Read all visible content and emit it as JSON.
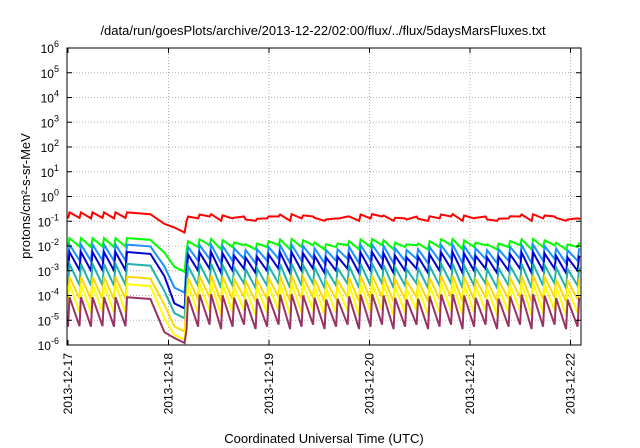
{
  "chart_data": {
    "type": "line",
    "title": "/data/run/goesPlots/archive/2013-12-22/02:00/flux/../flux/5daysMarsFluxes.txt",
    "xlabel": "Coordinated Universal Time (UTC)",
    "ylabel": "protons/cm²-s-sr-MeV",
    "yscale": "log",
    "ylim": [
      1e-06,
      1000000.0
    ],
    "xlim": [
      "2013-12-17",
      "2013-12-22T02:00"
    ],
    "grid": true,
    "x_ticks": [
      "2013-12-17",
      "2013-12-18",
      "2013-12-19",
      "2013-12-20",
      "2013-12-21",
      "2013-12-22"
    ],
    "y_ticks": [
      {
        "base": "10",
        "exp": "-6"
      },
      {
        "base": "10",
        "exp": "-5"
      },
      {
        "base": "10",
        "exp": "-4"
      },
      {
        "base": "10",
        "exp": "-3"
      },
      {
        "base": "10",
        "exp": "-2"
      },
      {
        "base": "10",
        "exp": "-1"
      },
      {
        "base": "10",
        "exp": "0"
      },
      {
        "base": "10",
        "exp": "1"
      },
      {
        "base": "10",
        "exp": "2"
      },
      {
        "base": "10",
        "exp": "3"
      },
      {
        "base": "10",
        "exp": "4"
      },
      {
        "base": "10",
        "exp": "5"
      },
      {
        "base": "10",
        "exp": "6"
      }
    ],
    "series": [
      {
        "color": "#ff0000",
        "peak": 0.24,
        "trough": 0.13,
        "recover": 0.12,
        "dip": 0.035
      },
      {
        "color": "#00ff00",
        "peak": 0.022,
        "trough": 0.009,
        "recover": 0.012,
        "dip": 0.0009
      },
      {
        "color": "#1e90ff",
        "peak": 0.012,
        "trough": 0.0025,
        "recover": 0.007,
        "dip": 0.00013
      },
      {
        "color": "#0000cd",
        "peak": 0.006,
        "trough": 0.001,
        "recover": 0.0035,
        "dip": 3e-05
      },
      {
        "color": "#20b2aa",
        "peak": 0.002,
        "trough": 0.00025,
        "recover": 0.0012,
        "dip": 1.2e-05
      },
      {
        "color": "#ffd700",
        "peak": 0.0006,
        "trough": 7e-05,
        "recover": 0.0004,
        "dip": 3.5e-06
      },
      {
        "color": "#ffff00",
        "peak": 0.0003,
        "trough": 2e-05,
        "recover": 0.0002,
        "dip": 1.6e-06
      },
      {
        "color": "#993366",
        "peak": 9e-05,
        "trough": 5.5e-06,
        "recover": 7e-05,
        "dip": 1.2e-06
      }
    ]
  }
}
